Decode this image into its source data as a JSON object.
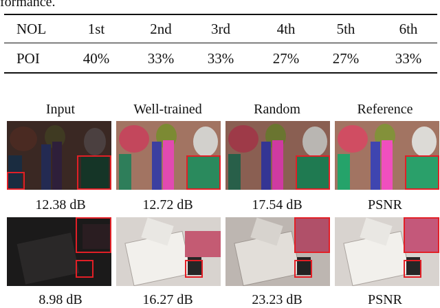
{
  "caption_fragment": "formance.",
  "table": {
    "row_header_1": "NOL",
    "row_header_2": "POI",
    "columns": [
      "1st",
      "2nd",
      "3rd",
      "4th",
      "5th",
      "6th"
    ],
    "values": [
      "40%",
      "33%",
      "33%",
      "27%",
      "27%",
      "33%"
    ]
  },
  "figure": {
    "column_headers": [
      "Input",
      "Well-trained",
      "Random",
      "Reference"
    ],
    "row1_labels": [
      "12.38 dB",
      "12.72 dB",
      "17.54 dB",
      "PSNR"
    ],
    "row2_labels": [
      "8.98 dB",
      "16.27 dB",
      "23.23 dB",
      "PSNR"
    ]
  },
  "colors": {
    "zoom_box": "#e21f26",
    "text": "#111111"
  }
}
